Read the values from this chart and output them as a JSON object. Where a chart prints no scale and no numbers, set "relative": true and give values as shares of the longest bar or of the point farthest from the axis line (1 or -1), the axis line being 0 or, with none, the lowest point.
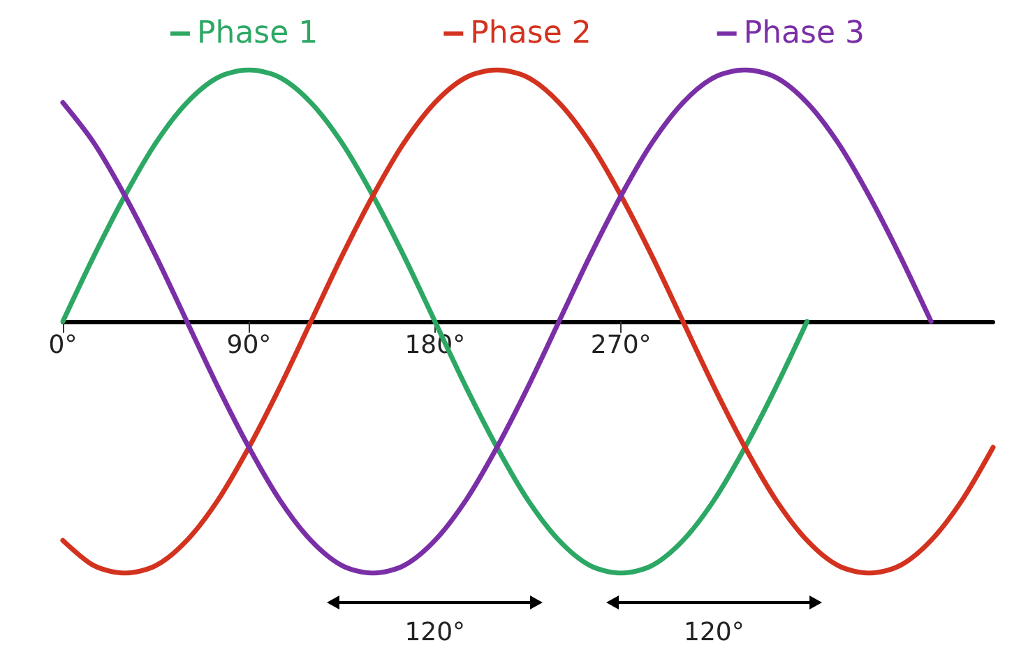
{
  "chart_data": {
    "type": "line",
    "relative": true,
    "legend": "top",
    "marker": "none",
    "line_style": "solid",
    "grid": false,
    "xlim": [
      0,
      450
    ],
    "xticks": [
      {
        "value": 0,
        "label": "0°"
      },
      {
        "value": 90,
        "label": "90°"
      },
      {
        "value": 180,
        "label": "180°"
      },
      {
        "value": 270,
        "label": "270°"
      }
    ],
    "annotations": [
      "120°",
      "120°"
    ],
    "series": [
      {
        "name": "Phase 1",
        "color": "#2ca864",
        "x": [
          0,
          15,
          30,
          45,
          60,
          75,
          90,
          105,
          120,
          135,
          150,
          165,
          180,
          195,
          210,
          225,
          240,
          255,
          270,
          285,
          300,
          315,
          330,
          345,
          360
        ],
        "values": [
          0,
          0.26,
          0.5,
          0.71,
          0.87,
          0.97,
          1,
          0.97,
          0.87,
          0.71,
          0.5,
          0.26,
          0,
          -0.26,
          -0.5,
          -0.71,
          -0.87,
          -0.97,
          -1,
          -0.97,
          -0.87,
          -0.71,
          -0.5,
          -0.26,
          0
        ]
      },
      {
        "name": "Phase 2",
        "color": "#d3321f",
        "x": [
          0,
          15,
          30,
          45,
          60,
          75,
          90,
          105,
          120,
          135,
          150,
          165,
          180,
          195,
          210,
          225,
          240,
          255,
          270,
          285,
          300,
          315,
          330,
          345,
          360,
          375,
          390,
          405,
          420,
          435,
          450
        ],
        "values": [
          -0.87,
          -0.97,
          -1,
          -0.97,
          -0.87,
          -0.71,
          -0.5,
          -0.26,
          0,
          0.26,
          0.5,
          0.71,
          0.87,
          0.97,
          1,
          0.97,
          0.87,
          0.71,
          0.5,
          0.26,
          0,
          -0.26,
          -0.5,
          -0.71,
          -0.87,
          -0.97,
          -1,
          -0.97,
          -0.87,
          -0.71,
          -0.5
        ]
      },
      {
        "name": "Phase 3",
        "color": "#7a2fa6",
        "x": [
          0,
          15,
          30,
          45,
          60,
          75,
          90,
          105,
          120,
          135,
          150,
          165,
          180,
          195,
          210,
          225,
          240,
          255,
          270,
          285,
          300,
          315,
          330,
          345,
          360,
          375,
          390,
          405,
          420
        ],
        "values": [
          0.87,
          0.71,
          0.5,
          0.26,
          0,
          -0.26,
          -0.5,
          -0.71,
          -0.87,
          -0.97,
          -1,
          -0.97,
          -0.87,
          -0.71,
          -0.5,
          -0.26,
          0,
          0.26,
          0.5,
          0.71,
          0.87,
          0.97,
          1,
          0.97,
          0.87,
          0.71,
          0.5,
          0.26,
          0
        ]
      }
    ]
  }
}
